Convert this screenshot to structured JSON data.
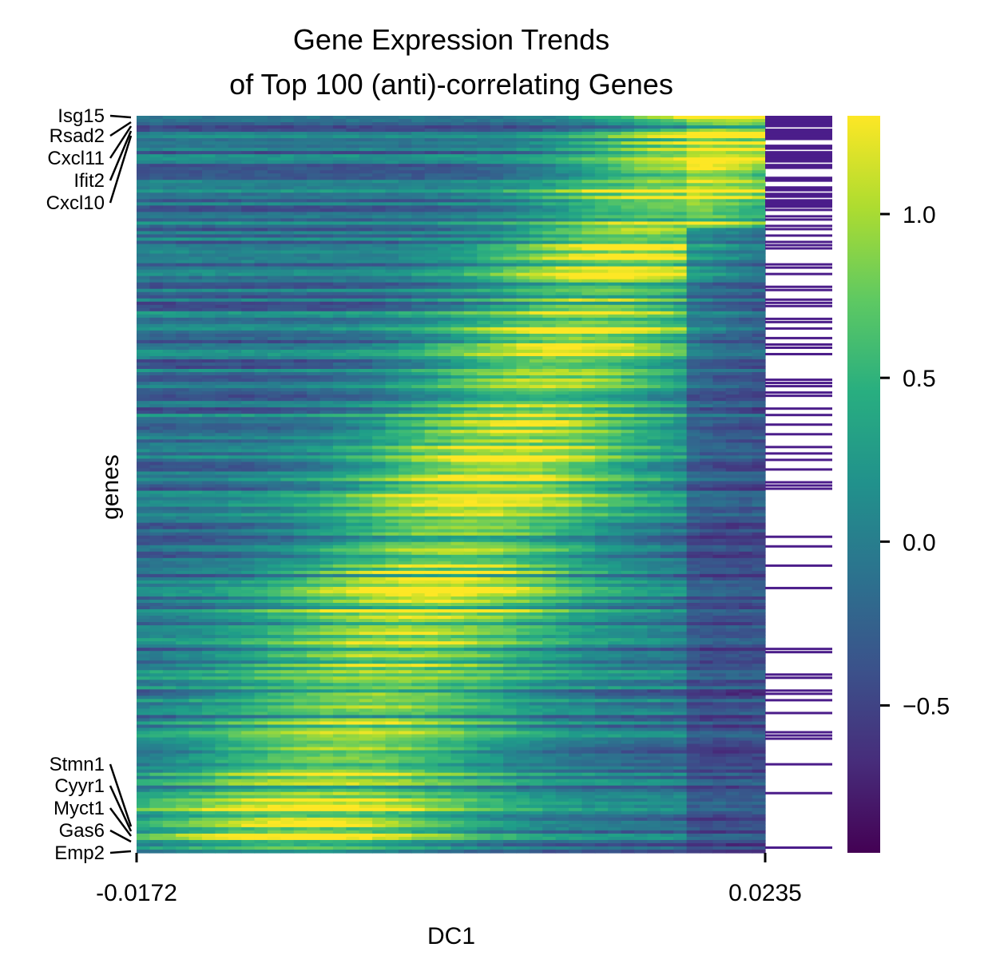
{
  "chart_data": {
    "type": "heatmap",
    "title_line1": "Gene Expression Trends",
    "title_line2": "of Top 100 (anti)-correlating Genes",
    "xlabel": "DC1",
    "ylabel": "genes",
    "x_range": [
      -0.0172,
      0.0235
    ],
    "x_tick_labels": [
      "-0.0172",
      "0.0235"
    ],
    "colormap": "viridis",
    "colorbar_range": [
      -0.95,
      1.3
    ],
    "colorbar_ticks": [
      1.0,
      0.5,
      0.0,
      -0.5
    ],
    "colorbar_tick_labels": [
      "1.0",
      "0.5",
      "0.0",
      "−0.5"
    ],
    "annotated_genes_top": [
      "Isg15",
      "Rsad2",
      "Cxcl11",
      "Ifit2",
      "Cxcl10"
    ],
    "annotated_genes_bottom": [
      "Stmn1",
      "Cyyr1",
      "Myct1",
      "Gas6",
      "Emp2"
    ],
    "side_annotation_color": "#4b1d8a",
    "grid": false,
    "legend": "colorbar-right"
  }
}
